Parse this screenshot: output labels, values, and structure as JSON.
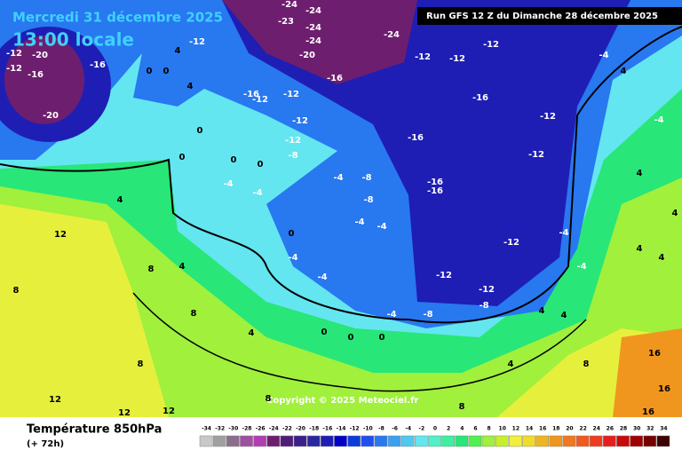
{
  "header": {
    "title": "Mercredi 31 décembre 2025",
    "subtitle": "13:00 locale",
    "run": "Run GFS 12 Z du Dimanche 28 décembre 2025",
    "copyright": "Copyright © 2025 Meteociel.fr"
  },
  "legend": {
    "label": "Température 850hPa",
    "sublabel": "(+ 72h)",
    "values": [
      -34,
      -32,
      -30,
      -28,
      -26,
      -24,
      -22,
      -20,
      -18,
      -16,
      -14,
      -12,
      -10,
      -8,
      -6,
      -4,
      -2,
      0,
      2,
      4,
      6,
      8,
      10,
      12,
      14,
      16,
      18,
      20,
      22,
      24,
      26,
      28,
      30,
      32,
      34
    ],
    "colors": [
      "#c8c8c8",
      "#a0a0a0",
      "#8c6e8c",
      "#a050a0",
      "#b43cb4",
      "#6e1e6e",
      "#501e78",
      "#3c1e8c",
      "#2828a0",
      "#1e1eb4",
      "#0000c8",
      "#0a3cdc",
      "#1e50f0",
      "#2878f0",
      "#3ca0f0",
      "#50c8f0",
      "#64e6f0",
      "#50f0c8",
      "#3cf0a0",
      "#28e678",
      "#50f050",
      "#a0f03c",
      "#c8f028",
      "#f0f03c",
      "#f0dc28",
      "#f0b41e",
      "#f0961e",
      "#f0781e",
      "#f05a1e",
      "#f03c1e",
      "#e61e1e",
      "#c80a0a",
      "#a00000",
      "#780000",
      "#3c0000"
    ]
  },
  "map_labels": [
    -12,
    -20,
    -12,
    -16,
    -16,
    -20,
    -24,
    -24,
    -23,
    -24,
    -24,
    -20,
    -24,
    -16,
    -12,
    -12,
    -12,
    -16,
    -12,
    -12,
    -16,
    -16,
    -16,
    -12,
    -12,
    -12,
    -8,
    -8,
    -4,
    -12,
    -12,
    -8,
    -16,
    -12,
    -12,
    -4,
    -4,
    0,
    0,
    0,
    0,
    4,
    -12,
    4,
    0,
    0,
    4,
    12,
    8,
    8,
    4,
    8,
    4,
    8,
    12,
    12,
    12,
    0,
    -4,
    -4,
    -4,
    -8,
    -8,
    -4,
    -4,
    -4,
    -4,
    4,
    4,
    4,
    8,
    8,
    16,
    16,
    16,
    -4,
    4,
    -4,
    4,
    4,
    4,
    4,
    8,
    0,
    0,
    0
  ]
}
